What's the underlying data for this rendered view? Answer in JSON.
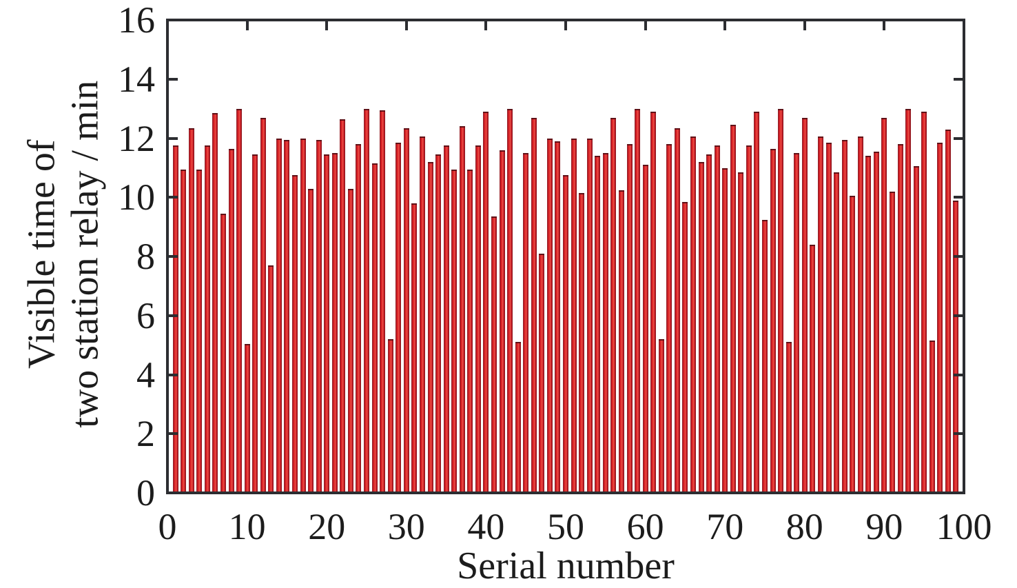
{
  "chart_data": {
    "type": "bar",
    "title": "",
    "xlabel": "Serial number",
    "ylabel": "Visible time of two station relay / min",
    "ylabel_line1": "Visible time of",
    "ylabel_line2": "two station relay / min",
    "xlim": [
      0,
      100
    ],
    "ylim": [
      0,
      16
    ],
    "xticks": [
      0,
      10,
      20,
      30,
      40,
      50,
      60,
      70,
      80,
      90,
      100
    ],
    "yticks": [
      0,
      2,
      4,
      6,
      8,
      10,
      12,
      14,
      16
    ],
    "grid": false,
    "legend": "none",
    "bar_fill_color": "#dc2028",
    "bar_edge_color": "#7e151c",
    "frame_color": "#2c2d31",
    "n_bars": 99,
    "x": [
      1,
      2,
      3,
      4,
      5,
      6,
      7,
      8,
      9,
      10,
      11,
      12,
      13,
      14,
      15,
      16,
      17,
      18,
      19,
      20,
      21,
      22,
      23,
      24,
      25,
      26,
      27,
      28,
      29,
      30,
      31,
      32,
      33,
      34,
      35,
      36,
      37,
      38,
      39,
      40,
      41,
      42,
      43,
      44,
      45,
      46,
      47,
      48,
      49,
      50,
      51,
      52,
      53,
      54,
      55,
      56,
      57,
      58,
      59,
      60,
      61,
      62,
      63,
      64,
      65,
      66,
      67,
      68,
      69,
      70,
      71,
      72,
      73,
      74,
      75,
      76,
      77,
      78,
      79,
      80,
      81,
      82,
      83,
      84,
      85,
      86,
      87,
      88,
      89,
      90,
      91,
      92,
      93,
      94,
      95,
      96,
      97,
      98,
      99
    ],
    "values": [
      11.7,
      10.9,
      12.3,
      10.9,
      11.7,
      12.8,
      9.4,
      11.6,
      12.95,
      5.0,
      11.4,
      12.65,
      7.65,
      11.95,
      11.9,
      10.7,
      11.95,
      10.25,
      11.9,
      11.4,
      11.45,
      12.6,
      10.25,
      11.75,
      12.95,
      11.1,
      12.9,
      5.15,
      11.8,
      12.3,
      9.75,
      12.0,
      11.15,
      11.4,
      11.7,
      10.9,
      12.35,
      10.9,
      11.7,
      12.85,
      9.3,
      11.55,
      12.95,
      5.05,
      11.45,
      12.65,
      8.05,
      11.95,
      11.85,
      10.7,
      11.95,
      10.1,
      11.95,
      11.35,
      11.45,
      12.65,
      10.2,
      11.75,
      12.95,
      11.05,
      12.85,
      5.15,
      11.75,
      12.3,
      9.8,
      12.0,
      11.15,
      11.4,
      11.7,
      10.95,
      12.4,
      10.8,
      11.7,
      12.85,
      9.2,
      11.6,
      12.95,
      5.05,
      11.45,
      12.65,
      8.35,
      12.0,
      11.8,
      10.8,
      11.9,
      10.0,
      12.0,
      11.35,
      11.5,
      12.65,
      10.15,
      11.75,
      12.95,
      11.0,
      12.85,
      5.1,
      11.8,
      12.25,
      9.85
    ]
  }
}
